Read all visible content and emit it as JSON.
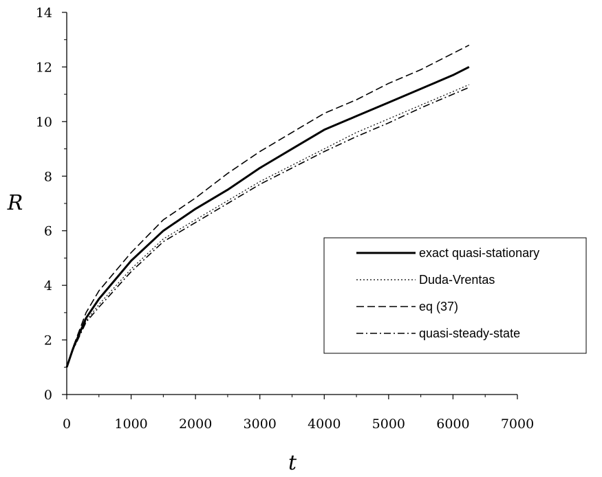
{
  "chart_data": {
    "type": "line",
    "xlabel": "t",
    "ylabel": "R",
    "xlim": [
      0,
      7000
    ],
    "ylim": [
      0,
      14
    ],
    "x_ticks": [
      "0",
      "1000",
      "2000",
      "3000",
      "4000",
      "5000",
      "6000",
      "7000"
    ],
    "y_ticks": [
      "0",
      "2",
      "4",
      "6",
      "8",
      "10",
      "12",
      "14"
    ],
    "grid": false,
    "legend_position": "right",
    "series": [
      {
        "name": "exact quasi-stationary",
        "style": "solid-thick",
        "color": "#000000",
        "x": [
          0,
          100,
          300,
          500,
          1000,
          1500,
          2000,
          2500,
          3000,
          3500,
          4000,
          4500,
          5000,
          5500,
          6000,
          6250
        ],
        "y": [
          1.0,
          1.7,
          2.8,
          3.5,
          4.9,
          6.0,
          6.8,
          7.5,
          8.3,
          9.0,
          9.7,
          10.2,
          10.7,
          11.2,
          11.7,
          12.0
        ]
      },
      {
        "name": "Duda-Vrentas",
        "style": "dotted",
        "color": "#000000",
        "x": [
          0,
          100,
          300,
          500,
          1000,
          1500,
          2000,
          2500,
          3000,
          3500,
          4000,
          4500,
          5000,
          5500,
          6000,
          6250
        ],
        "y": [
          1.0,
          1.65,
          2.7,
          3.3,
          4.6,
          5.7,
          6.4,
          7.1,
          7.8,
          8.4,
          9.0,
          9.6,
          10.1,
          10.6,
          11.1,
          11.35
        ]
      },
      {
        "name": "eq (37)",
        "style": "dashed",
        "color": "#000000",
        "x": [
          0,
          100,
          300,
          500,
          1000,
          1500,
          2000,
          2500,
          3000,
          3500,
          4000,
          4500,
          5000,
          5500,
          6000,
          6250
        ],
        "y": [
          1.0,
          1.75,
          3.0,
          3.8,
          5.2,
          6.4,
          7.2,
          8.1,
          8.9,
          9.6,
          10.3,
          10.8,
          11.4,
          11.9,
          12.5,
          12.8
        ]
      },
      {
        "name": "quasi-steady-state",
        "style": "dash-dot",
        "color": "#000000",
        "x": [
          0,
          100,
          300,
          500,
          1000,
          1500,
          2000,
          2500,
          3000,
          3500,
          4000,
          4500,
          5000,
          5500,
          6000,
          6250
        ],
        "y": [
          1.0,
          1.65,
          2.65,
          3.2,
          4.5,
          5.6,
          6.3,
          7.0,
          7.7,
          8.3,
          8.9,
          9.45,
          9.95,
          10.5,
          11.0,
          11.25
        ]
      }
    ]
  }
}
